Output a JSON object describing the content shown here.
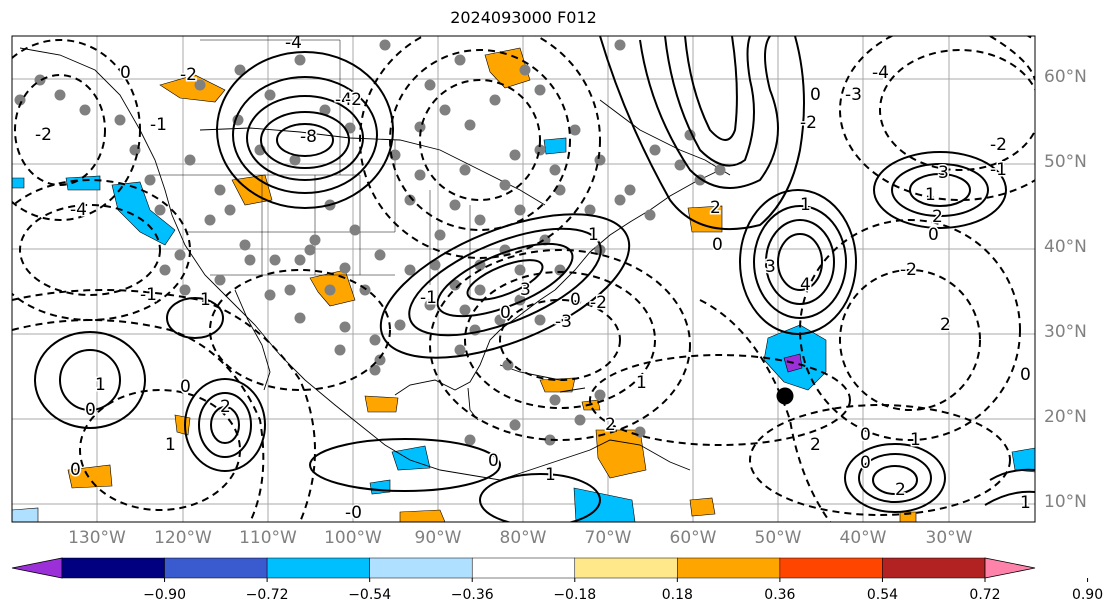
{
  "title": "2024093000 F012",
  "lon_labels": [
    "130°W",
    "120°W",
    "110°W",
    "100°W",
    "90°W",
    "80°W",
    "70°W",
    "60°W",
    "50°W",
    "40°W",
    "30°W"
  ],
  "lat_labels": [
    "60°N",
    "50°N",
    "40°N",
    "30°N",
    "20°N",
    "10°N"
  ],
  "colorbar": {
    "ticks": [
      "−0.90",
      "−0.72",
      "−0.54",
      "−0.36",
      "−0.18",
      "0.18",
      "0.36",
      "0.54",
      "0.72",
      "0.90"
    ],
    "colors": [
      "#9b30d9",
      "#000080",
      "#3a5bd0",
      "#00bfff",
      "#b0e0ff",
      "#ffffff",
      "#ffe88a",
      "#ffa500",
      "#ff4500",
      "#b22222",
      "#ff82ab"
    ]
  },
  "contour_labels": [
    "-8",
    "-4",
    "-2",
    "-1",
    "0",
    "1",
    "2",
    "3",
    "4"
  ],
  "marker_colors": {
    "station": "#808080",
    "storm": "#000000"
  }
}
